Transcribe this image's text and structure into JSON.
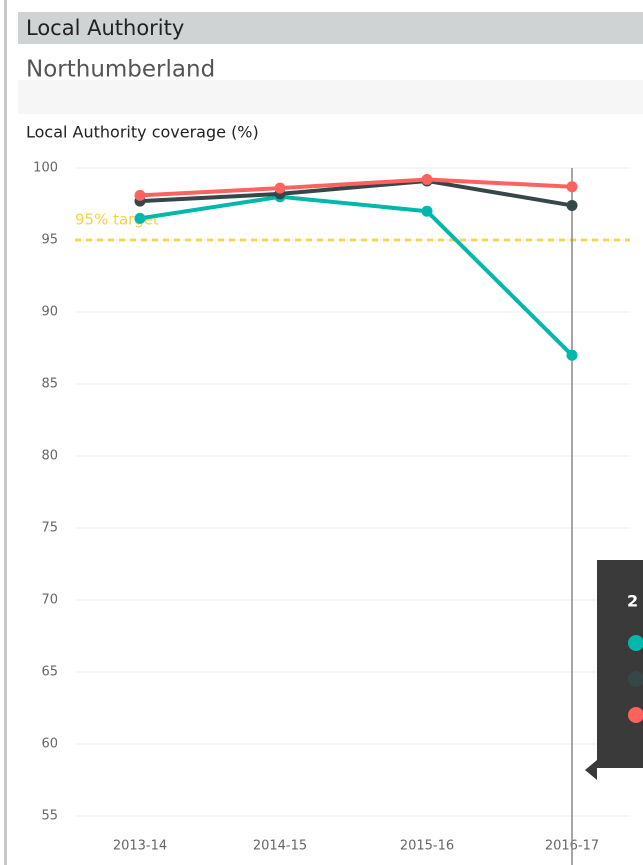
{
  "header": {
    "title": "Local Authority",
    "value": "Northumberland"
  },
  "chart_data": {
    "type": "line",
    "title": "Local Authority coverage (%)",
    "categories": [
      "2013-14",
      "2014-15",
      "2015-16",
      "2016-17"
    ],
    "series": [
      {
        "color": "#01b8aa",
        "values": [
          96.5,
          98,
          97,
          87
        ]
      },
      {
        "color": "#374649",
        "values": [
          97.7,
          98.2,
          99.1,
          97.4
        ]
      },
      {
        "color": "#fd625e",
        "values": [
          98.1,
          98.6,
          99.2,
          98.7
        ]
      }
    ],
    "ylim": [
      55,
      100
    ],
    "yticks": [
      55,
      60,
      65,
      70,
      75,
      80,
      85,
      90,
      95,
      100
    ],
    "grid": true,
    "target": {
      "value": 95,
      "label": "95% target",
      "color": "#f2c80f"
    },
    "tooltip": {
      "title": "2"
    }
  }
}
